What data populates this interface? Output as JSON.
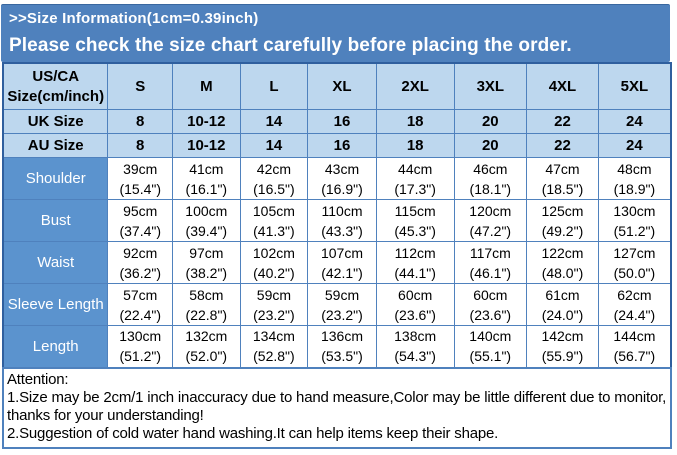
{
  "banner": {
    "subtitle": "Please check the size chart carefully before placing the order."
  },
  "chart_data": {
    "type": "table",
    "title": ">>Size Information(1cm=0.39inch)",
    "unit_note": "1cm=0.39inch",
    "columns": [
      "US/CA\nSize(cm/inch)",
      "S",
      "M",
      "L",
      "XL",
      "2XL",
      "3XL",
      "4XL",
      "5XL"
    ],
    "rows": [
      {
        "label": "UK Size",
        "style": "size",
        "values": [
          "8",
          "10-12",
          "14",
          "16",
          "18",
          "20",
          "22",
          "24"
        ]
      },
      {
        "label": "AU Size",
        "style": "size",
        "values": [
          "8",
          "10-12",
          "14",
          "16",
          "18",
          "20",
          "22",
          "24"
        ]
      },
      {
        "label": "Shoulder",
        "style": "measure",
        "values": [
          "39cm\n(15.4\")",
          "41cm\n(16.1\")",
          "42cm\n(16.5\")",
          "43cm\n(16.9\")",
          "44cm\n(17.3\")",
          "46cm\n(18.1\")",
          "47cm\n(18.5\")",
          "48cm\n(18.9\")"
        ]
      },
      {
        "label": "Bust",
        "style": "measure",
        "values": [
          "95cm\n(37.4\")",
          "100cm\n(39.4\")",
          "105cm\n(41.3\")",
          "110cm\n(43.3\")",
          "115cm\n(45.3\")",
          "120cm\n(47.2\")",
          "125cm\n(49.2\")",
          "130cm\n(51.2\")"
        ]
      },
      {
        "label": "Waist",
        "style": "measure",
        "values": [
          "92cm\n(36.2\")",
          "97cm\n(38.2\")",
          "102cm\n(40.2\")",
          "107cm\n(42.1\")",
          "112cm\n(44.1\")",
          "117cm\n(46.1\")",
          "122cm\n(48.0\")",
          "127cm\n(50.0\")"
        ]
      },
      {
        "label": "Sleeve Length",
        "style": "measure",
        "values": [
          "57cm\n(22.4\")",
          "58cm\n(22.8\")",
          "59cm\n(23.2\")",
          "59cm\n(23.2\")",
          "60cm\n(23.6\")",
          "60cm\n(23.6\")",
          "61cm\n(24.0\")",
          "62cm\n(24.4\")"
        ]
      },
      {
        "label": "Length",
        "style": "measure",
        "values": [
          "130cm\n(51.2\")",
          "132cm\n(52.0\")",
          "134cm\n(52.8\")",
          "136cm\n(53.5\")",
          "138cm\n(54.3\")",
          "140cm\n(55.1\")",
          "142cm\n(55.9\")",
          "144cm\n(56.7\")"
        ]
      }
    ]
  },
  "attention": {
    "title": "Attention:",
    "notes": [
      "1.Size may be 2cm/1 inch inaccuracy due to hand measure,Color may be little different due to monitor, thanks for your understanding!",
      "2.Suggestion of cold water hand washing.It can help items keep their shape."
    ]
  },
  "colors": {
    "banner_bg": "#4f81bd",
    "header_bg": "#bdd7ee",
    "label_bg": "#5b93ce",
    "grid_line": "#4f81bd",
    "outer_border": "#2f5f9e",
    "text_dark": "#000000",
    "text_light": "#ffffff"
  }
}
